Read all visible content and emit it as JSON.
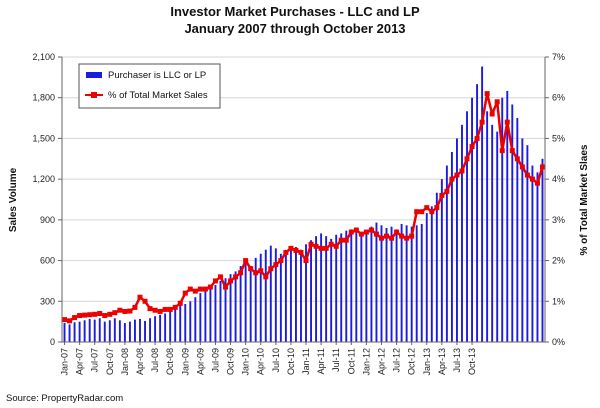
{
  "chart_data": {
    "type": "bar",
    "title": "Investor Market Purchases - LLC and LP",
    "subtitle": "January 2007 through October 2013",
    "ylabel": "Sales Volume",
    "y2label": "% of Total Market Slaes",
    "ylim": [
      0,
      2100
    ],
    "y2lim": [
      0,
      7
    ],
    "yticks": [
      "0",
      "300",
      "600",
      "900",
      "1,200",
      "1,500",
      "1,800",
      "2,100"
    ],
    "y2ticks": [
      "0%",
      "1%",
      "2%",
      "3%",
      "4%",
      "5%",
      "6%",
      "7%"
    ],
    "xticks": [
      "Jan-07",
      "Apr-07",
      "Jul-07",
      "Oct-07",
      "Jan-08",
      "Apr-08",
      "Jul-08",
      "Oct-08",
      "Jan-09",
      "Apr-09",
      "Jul-09",
      "Oct-09",
      "Jan-10",
      "Apr-10",
      "Jul-10",
      "Oct-10",
      "Jan-11",
      "Apr-11",
      "Jul-11",
      "Oct-11",
      "Jan-12",
      "Apr-12",
      "Jul-12",
      "Oct-12",
      "Jan-13",
      "Apr-13",
      "Jul-13",
      "Oct-13"
    ],
    "grid": true,
    "legend_position": "top-left",
    "series": [
      {
        "name": "Purchaser is LLC or LP",
        "type": "bar",
        "axis": "left",
        "values": [
          140,
          130,
          145,
          150,
          160,
          170,
          165,
          175,
          150,
          160,
          175,
          160,
          140,
          150,
          165,
          170,
          155,
          175,
          190,
          200,
          210,
          230,
          250,
          270,
          280,
          300,
          330,
          360,
          380,
          400,
          420,
          450,
          470,
          500,
          520,
          560,
          600,
          560,
          620,
          650,
          680,
          710,
          690,
          650,
          660,
          680,
          700,
          680,
          720,
          750,
          780,
          800,
          780,
          760,
          790,
          800,
          820,
          830,
          810,
          800,
          820,
          850,
          880,
          860,
          840,
          850,
          830,
          870,
          860,
          850,
          860,
          870,
          950,
          1000,
          1100,
          1200,
          1300,
          1400,
          1500,
          1600,
          1700,
          1800,
          1900,
          2030,
          1700,
          1600,
          1550,
          1800,
          1850,
          1750,
          1650,
          1500,
          1450,
          1300,
          1250,
          1350
        ]
      },
      {
        "name": "% of Total Market Sales",
        "type": "line",
        "axis": "right",
        "values": [
          0.55,
          0.52,
          0.6,
          0.65,
          0.66,
          0.67,
          0.68,
          0.7,
          0.65,
          0.68,
          0.72,
          0.78,
          0.75,
          0.76,
          0.85,
          1.1,
          1.0,
          0.82,
          0.78,
          0.75,
          0.8,
          0.8,
          0.85,
          0.95,
          1.2,
          1.3,
          1.25,
          1.3,
          1.3,
          1.35,
          1.5,
          1.6,
          1.35,
          1.5,
          1.6,
          1.7,
          2.0,
          1.8,
          1.7,
          1.75,
          1.6,
          1.8,
          1.9,
          2.0,
          2.2,
          2.3,
          2.25,
          2.2,
          2.0,
          2.4,
          2.35,
          2.3,
          2.3,
          2.4,
          2.35,
          2.5,
          2.5,
          2.7,
          2.75,
          2.65,
          2.7,
          2.75,
          2.65,
          2.55,
          2.6,
          2.55,
          2.7,
          2.6,
          2.55,
          2.6,
          3.2,
          3.2,
          3.3,
          3.2,
          3.3,
          3.6,
          3.7,
          4.0,
          4.1,
          4.2,
          4.5,
          4.8,
          5.0,
          5.4,
          6.1,
          5.6,
          5.9,
          4.7,
          5.4,
          4.7,
          4.5,
          4.3,
          4.1,
          4.0,
          3.9,
          4.3
        ]
      }
    ]
  },
  "source": "Source: PropertyRadar.com",
  "colors": {
    "bar": "#1c1ce0",
    "line": "#ee0000",
    "axis": "#666666",
    "grid": "#d6d6d6"
  }
}
